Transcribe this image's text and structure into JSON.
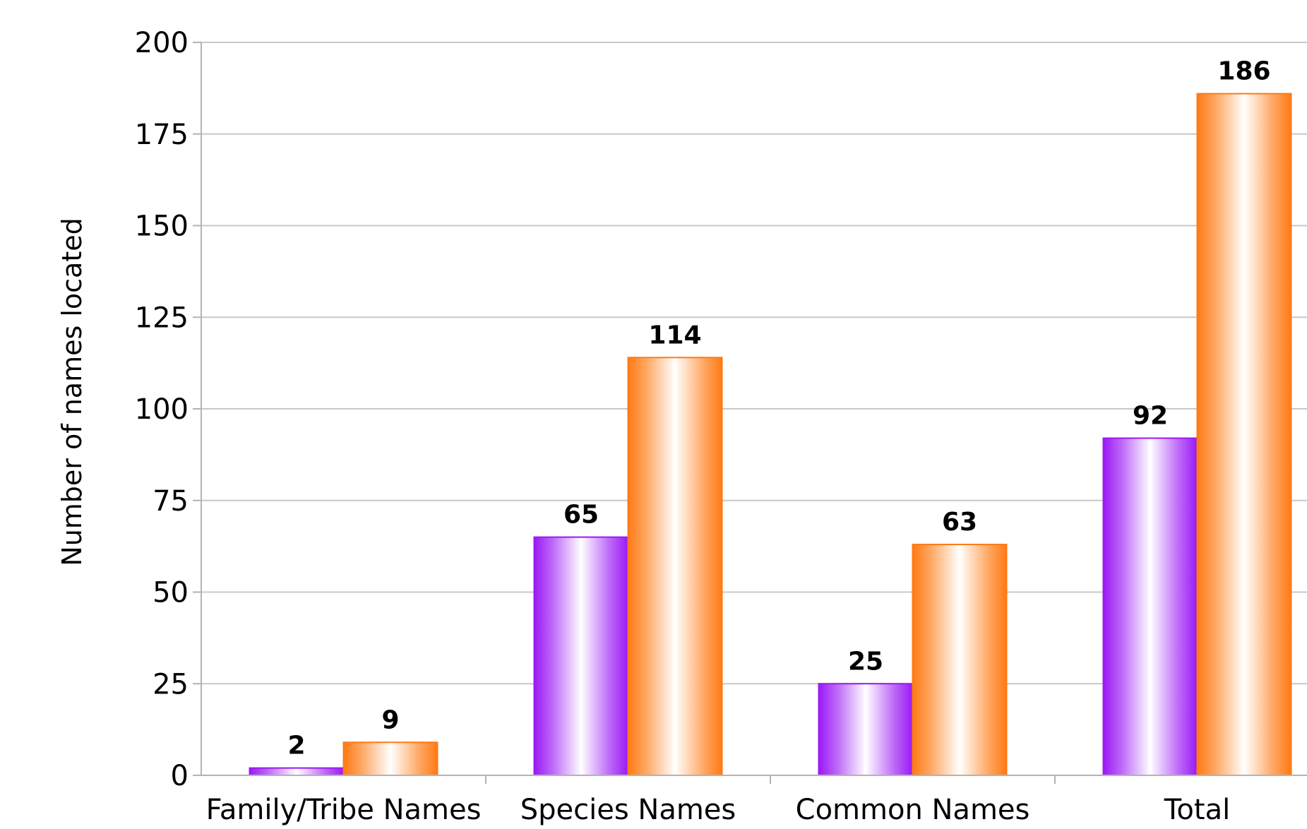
{
  "chart_data": {
    "type": "bar",
    "categories": [
      "Family/Tribe Names",
      "Species Names",
      "Common Names",
      "Total"
    ],
    "series": [
      {
        "values": [
          2,
          65,
          25,
          92
        ],
        "color": "#9b19f5"
      },
      {
        "values": [
          9,
          114,
          63,
          186
        ],
        "color": "#ff7a14"
      }
    ],
    "ylabel": "Number of names located",
    "ylim": [
      0,
      200
    ],
    "yticks": [
      0,
      25,
      50,
      75,
      100,
      125,
      150,
      175,
      200
    ],
    "grid": true,
    "data_labels": true,
    "legend": "none"
  }
}
